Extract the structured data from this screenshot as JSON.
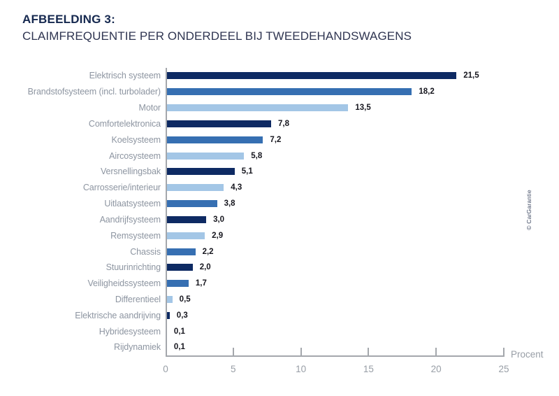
{
  "header": {
    "title": "AFBEELDING 3:",
    "subtitle": "CLAIMFREQUENTIE PER ONDERDEEL BIJ TWEEDEHANDSWAGENS"
  },
  "watermark": "© CarGarantie",
  "chart_data": {
    "type": "bar",
    "orientation": "horizontal",
    "title": "AFBEELDING 3: CLAIMFREQUENTIE PER ONDERDEEL BIJ TWEEDEHANDSWAGENS",
    "xlabel": "Procent",
    "xlim": [
      0,
      25
    ],
    "xticks": [
      0,
      5,
      10,
      15,
      20,
      25
    ],
    "grid": false,
    "legend": "none",
    "categories": [
      "Elektrisch systeem",
      "Brandstofsysteem (incl. turbolader)",
      "Motor",
      "Comfortelektronica",
      "Koelsysteem",
      "Aircosysteem",
      "Versnellingsbak",
      "Carrosserie/interieur",
      "Uitlaatsysteem",
      "Aandrijfsysteem",
      "Remsysteem",
      "Chassis",
      "Stuurinrichting",
      "Veiligheidssysteem",
      "Differentieel",
      "Elektrische aandrijving",
      "Hybridesysteem",
      "Rijdynamiek"
    ],
    "values": [
      21.5,
      18.2,
      13.5,
      7.8,
      7.2,
      5.8,
      5.1,
      4.3,
      3.8,
      3.0,
      2.9,
      2.2,
      2.0,
      1.7,
      0.5,
      0.3,
      0.1,
      0.1
    ],
    "value_labels": [
      "21,5",
      "18,2",
      "13,5",
      "7,8",
      "7,2",
      "5,8",
      "5,1",
      "4,3",
      "3,8",
      "3,0",
      "2,9",
      "2,2",
      "2,0",
      "1,7",
      "0,5",
      "0,3",
      "0,1",
      "0,1"
    ],
    "bar_colors": [
      "dark",
      "medium",
      "light",
      "dark",
      "medium",
      "light",
      "dark",
      "light",
      "medium",
      "dark",
      "light",
      "medium",
      "dark",
      "medium",
      "light",
      "dark",
      "medium",
      "light"
    ],
    "palette": {
      "dark": "#0e2a63",
      "medium": "#366fb2",
      "light": "#a3c6e6"
    },
    "axis_color": "#a4a7ac",
    "label_color": "#8d95a1",
    "value_label_color": "#16161e"
  }
}
